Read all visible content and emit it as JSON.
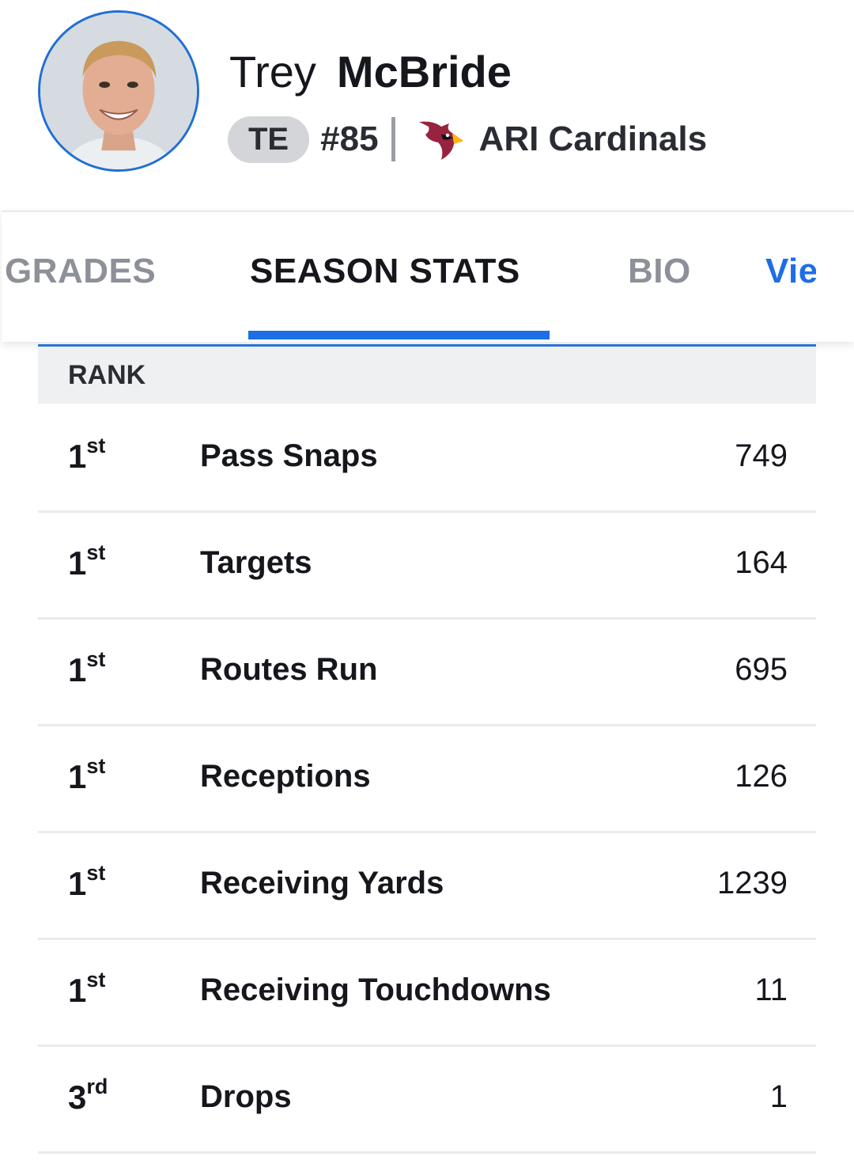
{
  "player": {
    "first_name": "Trey",
    "last_name": "McBride",
    "position": "TE",
    "jersey": "#85",
    "separator": "|",
    "team": "ARI Cardinals",
    "team_logo_icon": "cardinal-logo-icon"
  },
  "tabs": [
    {
      "label": "GRADES",
      "state": "inactive"
    },
    {
      "label": "SEASON STATS",
      "state": "active"
    },
    {
      "label": "BIO",
      "state": "inactive"
    },
    {
      "label": "Vie",
      "state": "link"
    }
  ],
  "table": {
    "header": "RANK",
    "rows": [
      {
        "rank_num": "1",
        "rank_suffix": "st",
        "label": "Pass Snaps",
        "value": "749"
      },
      {
        "rank_num": "1",
        "rank_suffix": "st",
        "label": "Targets",
        "value": "164"
      },
      {
        "rank_num": "1",
        "rank_suffix": "st",
        "label": "Routes Run",
        "value": "695"
      },
      {
        "rank_num": "1",
        "rank_suffix": "st",
        "label": "Receptions",
        "value": "126"
      },
      {
        "rank_num": "1",
        "rank_suffix": "st",
        "label": "Receiving Yards",
        "value": "1239"
      },
      {
        "rank_num": "1",
        "rank_suffix": "st",
        "label": "Receiving Touchdowns",
        "value": "11"
      },
      {
        "rank_num": "3",
        "rank_suffix": "rd",
        "label": "Drops",
        "value": "1"
      }
    ]
  },
  "colors": {
    "accent": "#1e6ee6",
    "cardinal_red": "#97233f",
    "cardinal_yellow": "#ffb612"
  }
}
